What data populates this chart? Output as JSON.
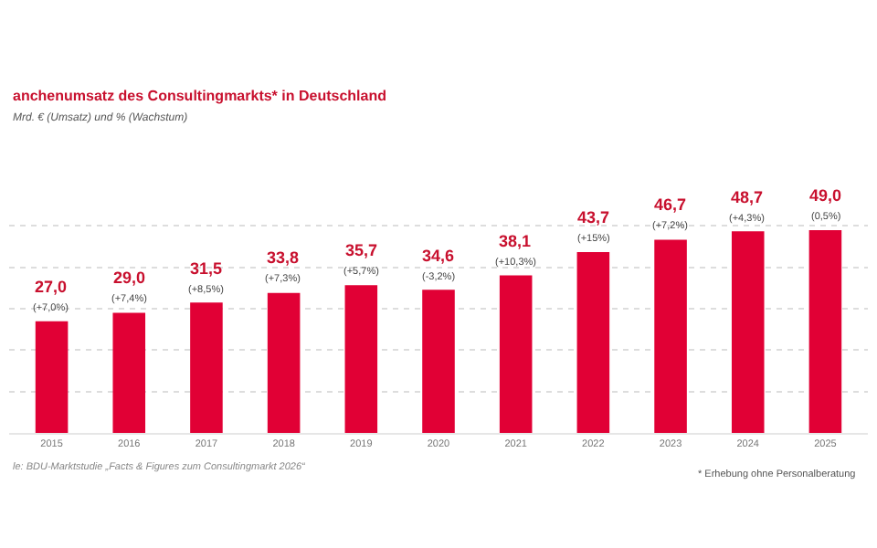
{
  "chart_data": {
    "type": "bar",
    "title": "anchenumsatz des Consultingmarkts* in Deutschland",
    "subtitle": "Mrd. € (Umsatz) und % (Wachstum)",
    "categories": [
      "2015",
      "2016",
      "2017",
      "2018",
      "2019",
      "2020",
      "2021",
      "2022",
      "2023",
      "2024",
      "2025"
    ],
    "values": [
      27.0,
      29.0,
      31.5,
      33.8,
      35.7,
      34.6,
      38.1,
      43.7,
      46.7,
      48.7,
      49.0
    ],
    "value_labels": [
      "27,0",
      "29,0",
      "31,5",
      "33,8",
      "35,7",
      "34,6",
      "38,1",
      "43,7",
      "46,7",
      "48,7",
      "49,0"
    ],
    "color": "#e10035",
    "annotations": [
      {
        "text": "(+7,0%)",
        "x": "2015",
        "y": 27.0
      },
      {
        "text": "(+7,4%)",
        "x": "2016",
        "y": 29.0
      },
      {
        "text": "(+8,5%)",
        "x": "2017",
        "y": 31.5
      },
      {
        "text": "(+7,3%)",
        "x": "2018",
        "y": 33.8
      },
      {
        "text": "(+5,7%)",
        "x": "2019",
        "y": 35.7
      },
      {
        "text": "(-3,2%)",
        "x": "2020",
        "y": 34.6
      },
      {
        "text": "(+10,3%)",
        "x": "2021",
        "y": 38.1
      },
      {
        "text": "(+15%)",
        "x": "2022",
        "y": 43.7
      },
      {
        "text": "(+7,2%)",
        "x": "2023",
        "y": 46.7
      },
      {
        "text": "(+4,3%)",
        "x": "2024",
        "y": 48.7
      },
      {
        "text": "(0,5%)",
        "x": "2025",
        "y": 49.0
      },
      "le: BDU-Marktstudie „Facts & Figures zum Consultingmarkt 2026“",
      "* Erhebung ohne Personalberatung"
    ],
    "yticks": [
      {
        "value": 0,
        "label": null
      },
      {
        "value": 10,
        "label": null
      },
      {
        "value": 20,
        "label": null
      },
      {
        "value": 30,
        "label": null
      },
      {
        "value": 40,
        "label": null
      },
      {
        "value": 50,
        "label": null
      }
    ],
    "grid": "y",
    "tick_labels": "x",
    "legend": false
  }
}
